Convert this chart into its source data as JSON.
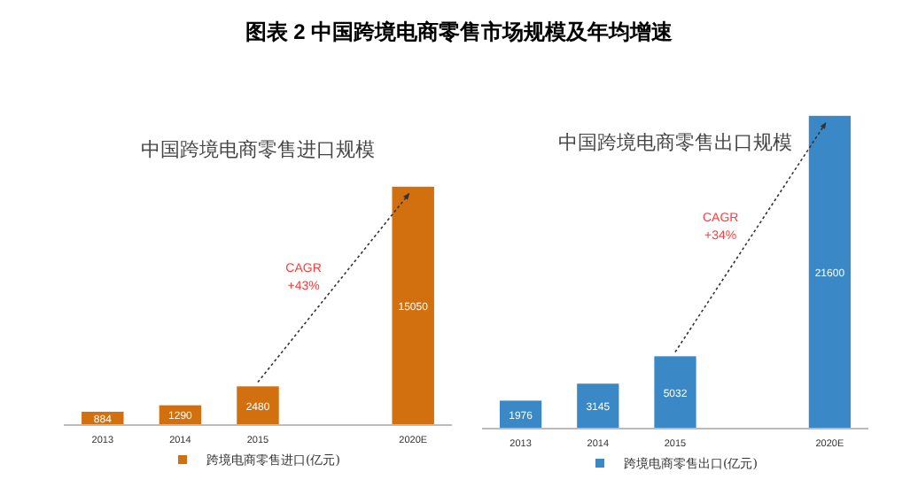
{
  "chart_data": [
    {
      "type": "bar",
      "title": "中国跨境电商零售进口规模",
      "categories": [
        "2013",
        "2014",
        "2015",
        null,
        "2020E"
      ],
      "series": [
        {
          "name": "跨境电商零售进口(亿元)",
          "color": "#d2700f",
          "values": [
            884,
            1290,
            2480,
            null,
            15050
          ]
        }
      ],
      "data_labels": true,
      "legend": "bottom",
      "grid": false,
      "annotations": [
        "图表 2 中国跨境电商零售市场规模及年均增速",
        "CAGR\n+43%"
      ]
    },
    {
      "type": "bar",
      "title": "中国跨境电商零售出口规模",
      "categories": [
        "2013",
        "2014",
        "2015",
        null,
        "2020E"
      ],
      "series": [
        {
          "name": "跨境电商零售出口(亿元)",
          "color": "#3a88c5",
          "values": [
            1976,
            3145,
            5032,
            null,
            21600
          ]
        }
      ],
      "data_labels": true,
      "legend": "bottom",
      "grid": false,
      "annotations": [
        "CAGR\n+34%"
      ]
    }
  ]
}
